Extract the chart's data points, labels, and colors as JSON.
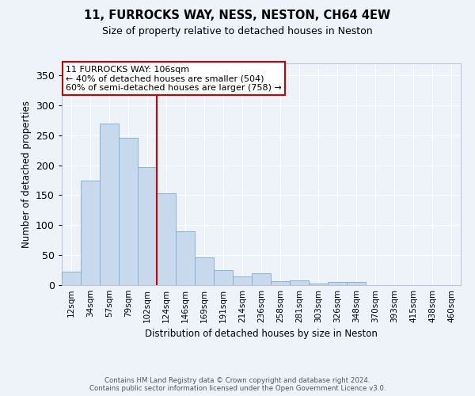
{
  "title": "11, FURROCKS WAY, NESS, NESTON, CH64 4EW",
  "subtitle": "Size of property relative to detached houses in Neston",
  "xlabel": "Distribution of detached houses by size in Neston",
  "ylabel": "Number of detached properties",
  "bar_color": "#c8d9ed",
  "bar_edge_color": "#7aadd4",
  "background_color": "#eef2f9",
  "grid_color": "#ffffff",
  "categories": [
    "12sqm",
    "34sqm",
    "57sqm",
    "79sqm",
    "102sqm",
    "124sqm",
    "146sqm",
    "169sqm",
    "191sqm",
    "214sqm",
    "236sqm",
    "258sqm",
    "281sqm",
    "303sqm",
    "326sqm",
    "348sqm",
    "370sqm",
    "393sqm",
    "415sqm",
    "438sqm",
    "460sqm"
  ],
  "values": [
    22,
    175,
    270,
    246,
    197,
    153,
    90,
    46,
    25,
    14,
    20,
    6,
    8,
    3,
    5,
    5,
    0,
    0,
    0,
    0,
    0
  ],
  "ylim": [
    0,
    370
  ],
  "yticks": [
    0,
    50,
    100,
    150,
    200,
    250,
    300,
    350
  ],
  "annotation_text": "11 FURROCKS WAY: 106sqm\n← 40% of detached houses are smaller (504)\n60% of semi-detached houses are larger (758) →",
  "annotation_box_color": "white",
  "annotation_box_edge_color": "#cc0000",
  "red_line_color": "#cc0000",
  "footer_line1": "Contains HM Land Registry data © Crown copyright and database right 2024.",
  "footer_line2": "Contains public sector information licensed under the Open Government Licence v3.0."
}
